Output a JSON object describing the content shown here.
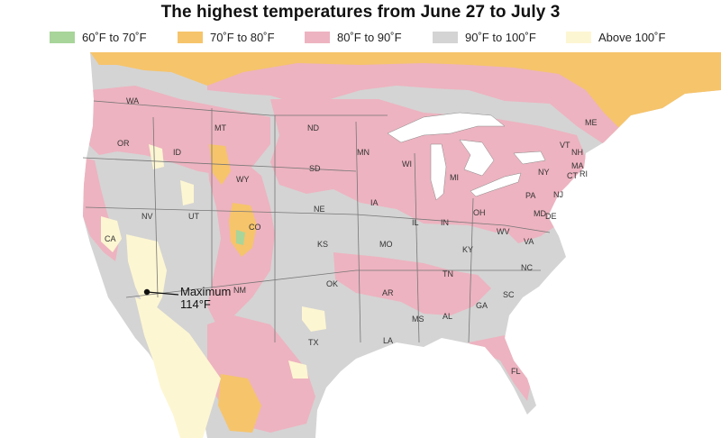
{
  "title": "The highest temperatures from June 27 to July 3",
  "legend": [
    {
      "label": "60˚F to 70˚F",
      "color": "#a8d59a"
    },
    {
      "label": "70˚F to 80˚F",
      "color": "#f6c46b"
    },
    {
      "label": "80˚F to 90˚F",
      "color": "#edb3c0"
    },
    {
      "label": "90˚F to 100˚F",
      "color": "#d4d4d4"
    },
    {
      "label": "Above 100˚F",
      "color": "#fdf6d2"
    }
  ],
  "annotation": {
    "line1": "Maximum",
    "line2": "114°F"
  },
  "states": {
    "WA": "WA",
    "OR": "OR",
    "ID": "ID",
    "MT": "MT",
    "WY": "WY",
    "NV": "NV",
    "UT": "UT",
    "CO": "CO",
    "CA": "CA",
    "NM": "NM",
    "ND": "ND",
    "SD": "SD",
    "NE": "NE",
    "KS": "KS",
    "OK": "OK",
    "TX": "TX",
    "MN": "MN",
    "IA": "IA",
    "MO": "MO",
    "AR": "AR",
    "LA": "LA",
    "WI": "WI",
    "IL": "IL",
    "MS": "MS",
    "MI": "MI",
    "IN": "IN",
    "KY": "KY",
    "TN": "TN",
    "AL": "AL",
    "OH": "OH",
    "WV": "WV",
    "GA": "GA",
    "FL": "FL",
    "SC": "SC",
    "NC": "NC",
    "VA": "VA",
    "PA": "PA",
    "NY": "NY",
    "MD": "MD",
    "DE": "DE",
    "NJ": "NJ",
    "CT": "CT",
    "RI": "RI",
    "MA": "MA",
    "VT": "VT",
    "NH": "NH",
    "ME": "ME"
  }
}
